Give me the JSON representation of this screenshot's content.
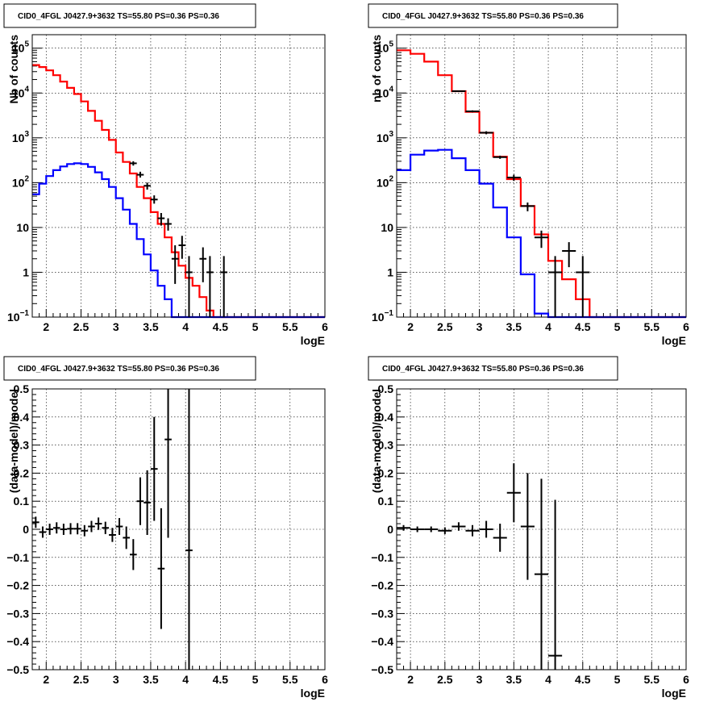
{
  "chart_data": [
    {
      "type": "line",
      "panel": "top-left",
      "title": "CID0_4FGL J0427.9+3632 TS=55.80 PS=0.36 PS=0.36",
      "xlabel": "logE",
      "ylabel": "Nb of counts",
      "xlim": [
        1.8,
        6.0
      ],
      "ylim": [
        0.1,
        200000
      ],
      "yscale": "log",
      "grid": true,
      "xticks": [
        2,
        2.5,
        3,
        3.5,
        4,
        4.5,
        5,
        5.5,
        6
      ],
      "xtick_labels": [
        "2",
        "2.5",
        "3",
        "3.5",
        "4",
        "4.5",
        "5",
        "5.5",
        "6"
      ],
      "yticks": [
        0.1,
        1,
        10,
        100,
        1000,
        10000,
        100000
      ],
      "ytick_labels": [
        "10^-1",
        "1",
        "10",
        "10^2",
        "10^3",
        "10^4",
        "10^5"
      ],
      "bin_edges": [
        1.8,
        1.9,
        2.0,
        2.1,
        2.2,
        2.3,
        2.4,
        2.5,
        2.6,
        2.7,
        2.8,
        2.9,
        3.0,
        3.1,
        3.2,
        3.3,
        3.4,
        3.5,
        3.6,
        3.7,
        3.8,
        3.9,
        4.0,
        4.1,
        4.2,
        4.3,
        4.4,
        4.5,
        4.6,
        4.7,
        4.8,
        4.9,
        5.0,
        5.1,
        5.2,
        5.3,
        5.4,
        5.5,
        5.6,
        5.7,
        5.8,
        5.9,
        6.0
      ],
      "series": [
        {
          "color": "#ff0000",
          "values": [
            42000,
            38000,
            32000,
            25000,
            18000,
            13000,
            9500,
            6500,
            4000,
            2400,
            1500,
            900,
            470,
            290,
            160,
            80,
            45,
            22,
            12,
            6,
            2.8,
            1.4,
            0.75,
            0.5,
            0.28,
            0.14,
            0.1,
            0.1,
            0.1,
            0.1,
            0.1,
            0.1,
            0.1,
            0.1,
            0.1,
            0.1,
            0.1,
            0.1,
            0.1,
            0.1,
            0.1,
            0.1
          ]
        },
        {
          "color": "#0000ff",
          "values": [
            55,
            95,
            140,
            190,
            230,
            260,
            270,
            260,
            225,
            170,
            120,
            80,
            45,
            25,
            12,
            5.5,
            2.5,
            1.1,
            0.5,
            0.25,
            0.1,
            0.1,
            0.1,
            0.1,
            0.1,
            0.1,
            0.1,
            0.1,
            0.1,
            0.1,
            0.1,
            0.1,
            0.1,
            0.1,
            0.1,
            0.1,
            0.1,
            0.1,
            0.1,
            0.1,
            0.1,
            0.1
          ]
        }
      ],
      "data_points": [
        {
          "x": 3.25,
          "y": 270,
          "ylo": 240,
          "yhi": 300
        },
        {
          "x": 3.35,
          "y": 150,
          "ylo": 130,
          "yhi": 175
        },
        {
          "x": 3.45,
          "y": 85,
          "ylo": 70,
          "yhi": 100
        },
        {
          "x": 3.55,
          "y": 42,
          "ylo": 34,
          "yhi": 52
        },
        {
          "x": 3.65,
          "y": 16,
          "ylo": 11,
          "yhi": 21
        },
        {
          "x": 3.75,
          "y": 12,
          "ylo": 8.5,
          "yhi": 16
        },
        {
          "x": 3.85,
          "y": 2,
          "ylo": 0.55,
          "yhi": 4
        },
        {
          "x": 3.95,
          "y": 4,
          "ylo": 2,
          "yhi": 6.5
        },
        {
          "x": 4.05,
          "y": 1,
          "ylo": 0.1,
          "yhi": 2.3
        },
        {
          "x": 4.25,
          "y": 2,
          "ylo": 0.6,
          "yhi": 3.6
        },
        {
          "x": 4.35,
          "y": 1,
          "ylo": 0.1,
          "yhi": 2.3
        },
        {
          "x": 4.55,
          "y": 1,
          "ylo": 0.1,
          "yhi": 2.3
        }
      ]
    },
    {
      "type": "line",
      "panel": "top-right",
      "title": "CID0_4FGL J0427.9+3632 TS=55.80 PS=0.36 PS=0.36",
      "xlabel": "logE",
      "ylabel": "nb of counts",
      "xlim": [
        1.8,
        6.0
      ],
      "ylim": [
        0.1,
        200000
      ],
      "yscale": "log",
      "grid": true,
      "xticks": [
        2,
        2.5,
        3,
        3.5,
        4,
        4.5,
        5,
        5.5,
        6
      ],
      "xtick_labels": [
        "2",
        "2.5",
        "3",
        "3.5",
        "4",
        "4.5",
        "5",
        "5.5",
        "6"
      ],
      "yticks": [
        0.1,
        1,
        10,
        100,
        1000,
        10000,
        100000
      ],
      "ytick_labels": [
        "10^-1",
        "1",
        "10",
        "10^2",
        "10^3",
        "10^4",
        "10^5"
      ],
      "bin_edges": [
        1.8,
        2.0,
        2.2,
        2.4,
        2.6,
        2.8,
        3.0,
        3.2,
        3.4,
        3.6,
        3.8,
        4.0,
        4.2,
        4.4,
        4.6,
        4.8,
        5.0,
        5.2,
        5.4,
        5.6,
        5.8,
        6.0
      ],
      "series": [
        {
          "color": "#ff0000",
          "values": [
            90000,
            75000,
            50000,
            25000,
            11000,
            3800,
            1300,
            380,
            120,
            30,
            7,
            1.8,
            0.7,
            0.25,
            0.1,
            0.1,
            0.1,
            0.1,
            0.1,
            0.1,
            0.1
          ]
        },
        {
          "color": "#0000ff",
          "values": [
            190,
            420,
            520,
            540,
            350,
            190,
            95,
            28,
            6,
            0.9,
            0.12,
            0.1,
            0.1,
            0.1,
            0.1,
            0.1,
            0.1,
            0.1,
            0.1,
            0.1,
            0.1
          ]
        }
      ],
      "data_points": [
        {
          "x": 2.7,
          "y": 11000,
          "ylo": 10600,
          "yhi": 11400
        },
        {
          "x": 2.9,
          "y": 3900,
          "ylo": 3700,
          "yhi": 4100
        },
        {
          "x": 3.1,
          "y": 1300,
          "ylo": 1200,
          "yhi": 1400
        },
        {
          "x": 3.3,
          "y": 370,
          "ylo": 340,
          "yhi": 400
        },
        {
          "x": 3.5,
          "y": 130,
          "ylo": 110,
          "yhi": 150
        },
        {
          "x": 3.7,
          "y": 30,
          "ylo": 23,
          "yhi": 36
        },
        {
          "x": 3.9,
          "y": 6,
          "ylo": 3.5,
          "yhi": 8.5
        },
        {
          "x": 4.1,
          "y": 1,
          "ylo": 0.1,
          "yhi": 2.3
        },
        {
          "x": 4.3,
          "y": 3,
          "ylo": 1.3,
          "yhi": 4.7
        },
        {
          "x": 4.5,
          "y": 1,
          "ylo": 0.1,
          "yhi": 2.3
        }
      ]
    },
    {
      "type": "scatter",
      "panel": "bottom-left",
      "title": "CID0_4FGL J0427.9+3632 TS=55.80 PS=0.36 PS=0.36",
      "xlabel": "logE",
      "ylabel": "(data-model)/model",
      "xlim": [
        1.8,
        6.0
      ],
      "ylim": [
        -0.5,
        0.5
      ],
      "grid": true,
      "xticks": [
        2,
        2.5,
        3,
        3.5,
        4,
        4.5,
        5,
        5.5,
        6
      ],
      "xtick_labels": [
        "2",
        "2.5",
        "3",
        "3.5",
        "4",
        "4.5",
        "5",
        "5.5",
        "6"
      ],
      "yticks": [
        -0.5,
        -0.4,
        -0.3,
        -0.2,
        -0.1,
        0,
        0.1,
        0.2,
        0.3,
        0.4,
        0.5
      ],
      "ytick_labels": [
        "−0.5",
        "−0.4",
        "−0.3",
        "−0.2",
        "−0.1",
        "0",
        "0.1",
        "0.2",
        "0.3",
        "0.4",
        "0.5"
      ],
      "xerr": 0.05,
      "points": [
        {
          "x": 1.85,
          "y": 0.025,
          "err": 0.02
        },
        {
          "x": 1.95,
          "y": -0.01,
          "err": 0.02
        },
        {
          "x": 2.05,
          "y": 0.0,
          "err": 0.02
        },
        {
          "x": 2.15,
          "y": 0.005,
          "err": 0.02
        },
        {
          "x": 2.25,
          "y": 0.0,
          "err": 0.02
        },
        {
          "x": 2.35,
          "y": 0.002,
          "err": 0.02
        },
        {
          "x": 2.45,
          "y": 0.002,
          "err": 0.02
        },
        {
          "x": 2.55,
          "y": -0.005,
          "err": 0.02
        },
        {
          "x": 2.65,
          "y": 0.01,
          "err": 0.02
        },
        {
          "x": 2.75,
          "y": 0.02,
          "err": 0.022
        },
        {
          "x": 2.85,
          "y": 0.005,
          "err": 0.022
        },
        {
          "x": 2.95,
          "y": -0.02,
          "err": 0.025
        },
        {
          "x": 3.05,
          "y": 0.01,
          "err": 0.03
        },
        {
          "x": 3.15,
          "y": -0.03,
          "err": 0.04
        },
        {
          "x": 3.25,
          "y": -0.09,
          "err": 0.055
        },
        {
          "x": 3.35,
          "y": 0.1,
          "err": 0.085
        },
        {
          "x": 3.45,
          "y": 0.095,
          "err": 0.115
        },
        {
          "x": 3.55,
          "y": 0.215,
          "err": 0.185
        },
        {
          "x": 3.65,
          "y": -0.14,
          "err": 0.215
        },
        {
          "x": 3.75,
          "y": 0.32,
          "err": 0.35
        },
        {
          "x": 4.05,
          "y": -0.075,
          "err": 1.0
        }
      ]
    },
    {
      "type": "scatter",
      "panel": "bottom-right",
      "title": "CID0_4FGL J0427.9+3632 TS=55.80 PS=0.36 PS=0.36",
      "xlabel": "logE",
      "ylabel": "(data-model)/model",
      "xlim": [
        1.8,
        6.0
      ],
      "ylim": [
        -0.5,
        0.5
      ],
      "grid": true,
      "xticks": [
        2,
        2.5,
        3,
        3.5,
        4,
        4.5,
        5,
        5.5,
        6
      ],
      "xtick_labels": [
        "2",
        "2.5",
        "3",
        "3.5",
        "4",
        "4.5",
        "5",
        "5.5",
        "6"
      ],
      "yticks": [
        -0.5,
        -0.4,
        -0.3,
        -0.2,
        -0.1,
        0,
        0.1,
        0.2,
        0.3,
        0.4,
        0.5
      ],
      "ytick_labels": [
        "−0.5",
        "−0.4",
        "−0.3",
        "−0.2",
        "−0.1",
        "0",
        "0.1",
        "0.2",
        "0.3",
        "0.4",
        "0.5"
      ],
      "xerr": 0.1,
      "points": [
        {
          "x": 1.9,
          "y": 0.005,
          "err": 0.01
        },
        {
          "x": 2.1,
          "y": 0.0,
          "err": 0.01
        },
        {
          "x": 2.3,
          "y": 0.0,
          "err": 0.01
        },
        {
          "x": 2.5,
          "y": -0.005,
          "err": 0.012
        },
        {
          "x": 2.7,
          "y": 0.01,
          "err": 0.015
        },
        {
          "x": 2.9,
          "y": -0.005,
          "err": 0.02
        },
        {
          "x": 3.1,
          "y": 0.0,
          "err": 0.03
        },
        {
          "x": 3.3,
          "y": -0.03,
          "err": 0.05
        },
        {
          "x": 3.5,
          "y": 0.13,
          "err": 0.105
        },
        {
          "x": 3.7,
          "y": 0.01,
          "err": 0.19
        },
        {
          "x": 3.9,
          "y": -0.16,
          "err": 0.34
        },
        {
          "x": 4.1,
          "y": -0.45,
          "err": 0.555
        }
      ]
    }
  ]
}
